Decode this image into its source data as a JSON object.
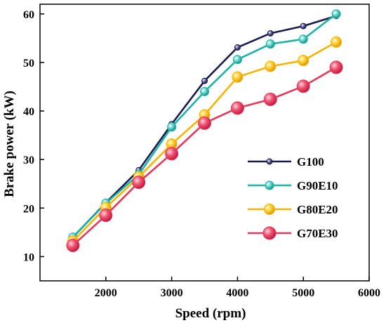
{
  "chart_data": {
    "type": "line",
    "title": "",
    "xlabel": "Speed (rpm)",
    "ylabel": "Brake power (kW)",
    "xlim": [
      1000,
      6000
    ],
    "ylim": [
      5,
      62
    ],
    "x_ticks": [
      2000,
      3000,
      4000,
      5000,
      6000
    ],
    "y_ticks": [
      10,
      20,
      30,
      40,
      50,
      60
    ],
    "x_tick_labels": [
      "2000",
      "3000",
      "4000",
      "5000",
      "6000"
    ],
    "y_tick_labels": [
      "10",
      "20",
      "30",
      "40",
      "50",
      "60"
    ],
    "x": [
      1500,
      2000,
      2500,
      3000,
      3500,
      4000,
      4500,
      5000,
      5500
    ],
    "grid": false,
    "legend_position": "right",
    "series": [
      {
        "name": "G100",
        "color": "#1a1a4e",
        "values": [
          14.0,
          21.1,
          27.8,
          37.3,
          46.2,
          53.1,
          56.0,
          57.5,
          59.6
        ]
      },
      {
        "name": "G90E10",
        "color": "#1ab3a6",
        "values": [
          14.0,
          21.0,
          26.9,
          36.7,
          44.0,
          50.6,
          53.8,
          54.8,
          60.0
        ]
      },
      {
        "name": "G80E20",
        "color": "#f5b400",
        "values": [
          13.2,
          20.1,
          26.4,
          33.2,
          39.2,
          47.0,
          49.2,
          50.4,
          54.2
        ]
      },
      {
        "name": "G70E30",
        "color": "#e8385a",
        "values": [
          12.3,
          18.5,
          25.3,
          31.2,
          37.5,
          40.6,
          42.4,
          45.1,
          49.0
        ]
      }
    ]
  }
}
